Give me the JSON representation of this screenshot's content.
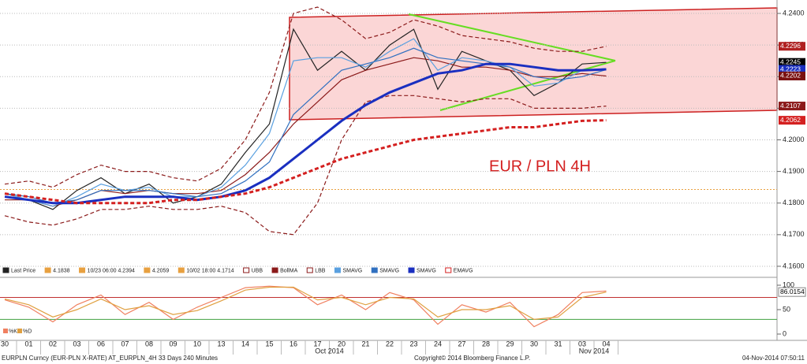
{
  "chart_data": [
    {
      "type": "line",
      "annotation": "EUR / PLN 4H",
      "categories": [
        "30",
        "01",
        "02",
        "03",
        "06",
        "07",
        "08",
        "09",
        "10",
        "13",
        "14",
        "15",
        "16",
        "17",
        "20",
        "21",
        "22",
        "23",
        "24",
        "27",
        "28",
        "29",
        "30",
        "31",
        "03",
        "04"
      ],
      "x_groups": [
        {
          "label": "Oct 2014",
          "at": 13
        },
        {
          "label": "Nov 2014",
          "at": 24
        }
      ],
      "ylim": [
        4.157,
        4.243
      ],
      "yticks": [
        {
          "value": 4.16,
          "label": "4.1600"
        },
        {
          "value": 4.17,
          "label": "4.1700"
        },
        {
          "value": 4.18,
          "label": "4.1800"
        },
        {
          "value": 4.19,
          "label": "4.1900"
        },
        {
          "value": 4.2,
          "label": "4.2000"
        },
        {
          "value": 4.21,
          "label": "4.2100"
        },
        {
          "value": 4.22,
          "label": "4.2200"
        },
        {
          "value": 4.23,
          "label": "4.2300"
        },
        {
          "value": 4.24,
          "label": "4.2400"
        }
      ],
      "grid": true,
      "hline": {
        "value": 4.1843,
        "color": "#e8a040"
      },
      "price_tags": [
        {
          "value": 4.2296,
          "color": "#b02020"
        },
        {
          "value": 4.2245,
          "color": "#000000"
        },
        {
          "value": 4.2223,
          "color": "#1a2fc0"
        },
        {
          "value": 4.2202,
          "color": "#7a1010"
        },
        {
          "value": 4.2107,
          "color": "#8b1a1a"
        },
        {
          "value": 4.2062,
          "color": "#d42020"
        }
      ],
      "legend_notes": [
        "4.1838",
        "10/23 06:00 4.2394",
        "4.2059",
        "10/02 18:00 4.1714"
      ],
      "series": [
        {
          "name": "Last Price",
          "color": "#222222",
          "values": [
            4.183,
            4.181,
            4.178,
            4.184,
            4.188,
            4.183,
            4.186,
            4.18,
            4.182,
            4.186,
            4.196,
            4.205,
            4.235,
            4.222,
            4.228,
            4.222,
            4.23,
            4.235,
            4.216,
            4.228,
            4.225,
            4.222,
            4.214,
            4.218,
            4.224,
            4.2245
          ]
        },
        {
          "name": "UBB",
          "color": "#8b1a1a",
          "dash": true,
          "values": [
            4.186,
            4.187,
            4.185,
            4.189,
            4.192,
            4.19,
            4.19,
            4.188,
            4.187,
            4.191,
            4.2,
            4.215,
            4.24,
            4.242,
            4.238,
            4.232,
            4.234,
            4.238,
            4.236,
            4.233,
            4.232,
            4.231,
            4.229,
            4.228,
            4.228,
            4.2296
          ]
        },
        {
          "name": "BollMA",
          "color": "#8b1a1a",
          "values": [
            4.181,
            4.181,
            4.179,
            4.181,
            4.184,
            4.183,
            4.184,
            4.183,
            4.183,
            4.184,
            4.189,
            4.196,
            4.205,
            4.212,
            4.219,
            4.222,
            4.224,
            4.226,
            4.225,
            4.223,
            4.223,
            4.222,
            4.22,
            4.22,
            4.221,
            4.2202
          ]
        },
        {
          "name": "LBB",
          "color": "#8b1a1a",
          "dash": true,
          "values": [
            4.176,
            4.174,
            4.173,
            4.175,
            4.178,
            4.178,
            4.179,
            4.178,
            4.178,
            4.179,
            4.177,
            4.171,
            4.17,
            4.18,
            4.2,
            4.212,
            4.214,
            4.214,
            4.213,
            4.212,
            4.213,
            4.213,
            4.21,
            4.21,
            4.21,
            4.2107
          ]
        },
        {
          "name": "SMAVG",
          "color": "#5aa0e0",
          "values": [
            4.183,
            4.181,
            4.179,
            4.182,
            4.186,
            4.184,
            4.185,
            4.182,
            4.182,
            4.185,
            4.192,
            4.202,
            4.225,
            4.226,
            4.226,
            4.223,
            4.228,
            4.232,
            4.222,
            4.226,
            4.225,
            4.223,
            4.217,
            4.218,
            4.222,
            4.2225
          ]
        },
        {
          "name": "SMAVG",
          "color": "#3070c0",
          "values": [
            4.183,
            4.182,
            4.18,
            4.181,
            4.184,
            4.184,
            4.184,
            4.183,
            4.182,
            4.183,
            4.187,
            4.193,
            4.208,
            4.215,
            4.222,
            4.224,
            4.226,
            4.229,
            4.226,
            4.225,
            4.224,
            4.223,
            4.22,
            4.219,
            4.22,
            4.2222
          ]
        },
        {
          "name": "SMAVG",
          "color": "#1a2fc0",
          "width": 3,
          "values": [
            4.182,
            4.181,
            4.18,
            4.18,
            4.181,
            4.182,
            4.182,
            4.182,
            4.181,
            4.182,
            4.184,
            4.188,
            4.194,
            4.2,
            4.206,
            4.211,
            4.215,
            4.218,
            4.221,
            4.222,
            4.224,
            4.224,
            4.223,
            4.222,
            4.222,
            4.2223
          ]
        },
        {
          "name": "EMAVG",
          "color": "#d42020",
          "width": 3,
          "dash": true,
          "values": [
            4.183,
            4.182,
            4.181,
            4.18,
            4.18,
            4.18,
            4.18,
            4.181,
            4.181,
            4.182,
            4.183,
            4.185,
            4.188,
            4.191,
            4.194,
            4.196,
            4.198,
            4.2,
            4.201,
            4.202,
            4.203,
            4.204,
            4.204,
            4.205,
            4.206,
            4.2062
          ]
        }
      ]
    },
    {
      "type": "line",
      "ylim": [
        -9.7,
        111.3
      ],
      "yticks": [
        0,
        50,
        100
      ],
      "levels": [
        {
          "value": 75,
          "color": "#c03030"
        },
        {
          "value": 30,
          "color": "#40a040"
        }
      ],
      "price_tags": [
        {
          "value": 86.0154,
          "color": "#ffffff"
        }
      ],
      "series": [
        {
          "name": "%K",
          "color": "#f08060",
          "values": [
            70,
            55,
            25,
            60,
            80,
            40,
            65,
            30,
            55,
            75,
            95,
            98,
            95,
            60,
            80,
            50,
            85,
            70,
            20,
            60,
            45,
            65,
            15,
            40,
            85,
            88
          ]
        },
        {
          "name": "%D",
          "color": "#e0a040",
          "values": [
            72,
            60,
            35,
            50,
            72,
            50,
            58,
            40,
            48,
            68,
            90,
            96,
            96,
            70,
            75,
            60,
            75,
            72,
            35,
            50,
            50,
            58,
            30,
            35,
            75,
            86.0154
          ]
        }
      ]
    }
  ],
  "footer": [
    "EURPLN Curncy (EUR-PLN X-RATE) AT_EURPLN_4H 33 Days 240 Minutes",
    "Copyright© 2014 Bloomberg Finance L.P.",
    "04-Nov-2014 07:50:11"
  ]
}
